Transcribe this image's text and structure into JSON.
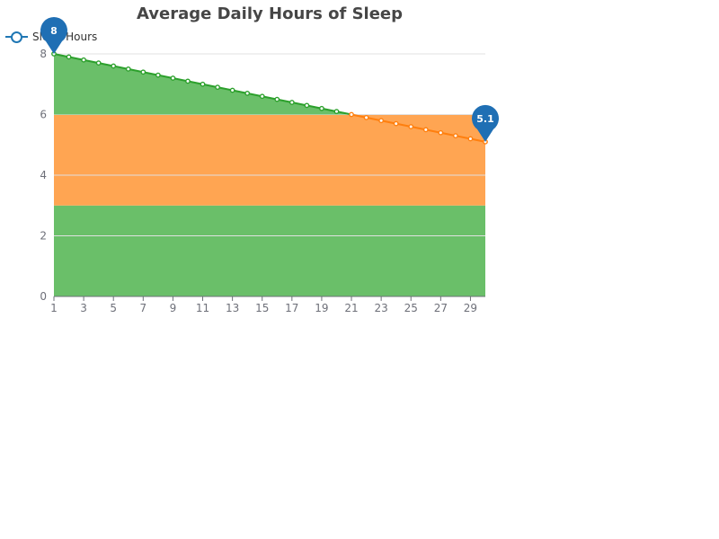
{
  "chart_data": {
    "type": "line",
    "title": "Average Daily Hours of Sleep",
    "xlabel": "",
    "ylabel": "",
    "x": [
      1,
      2,
      3,
      4,
      5,
      6,
      7,
      8,
      9,
      10,
      11,
      12,
      13,
      14,
      15,
      16,
      17,
      18,
      19,
      20,
      21,
      22,
      23,
      24,
      25,
      26,
      27,
      28,
      29,
      30
    ],
    "x_tick_labels": [
      "1",
      "3",
      "5",
      "7",
      "9",
      "11",
      "13",
      "15",
      "17",
      "19",
      "21",
      "23",
      "25",
      "27",
      "29"
    ],
    "y_tick_labels": [
      "0",
      "2",
      "4",
      "6",
      "8"
    ],
    "ylim": [
      0,
      8
    ],
    "grid": true,
    "legend_position": "top-left",
    "series": [
      {
        "name": "Sleep Hours",
        "values": [
          8.0,
          7.9,
          7.8,
          7.7,
          7.6,
          7.5,
          7.4,
          7.3,
          7.2,
          7.1,
          7.0,
          6.9,
          6.8,
          6.7,
          6.6,
          6.5,
          6.4,
          6.3,
          6.2,
          6.1,
          6.0,
          5.9,
          5.8,
          5.7,
          5.6,
          5.5,
          5.4,
          5.3,
          5.2,
          5.1
        ],
        "color": "#1f77b4"
      }
    ],
    "bands": [
      {
        "from": 0,
        "to": 3,
        "color": "#6abf69"
      },
      {
        "from": 3,
        "to": 6,
        "color": "#ffa552"
      }
    ],
    "visual_map": [
      {
        "max": 3,
        "color": "#2ca02c"
      },
      {
        "min": 3,
        "max": 6,
        "color": "#ff7f0e"
      },
      {
        "min": 6,
        "color": "#2ca02c"
      }
    ],
    "area_colors": {
      "above_band": "#6abf69"
    },
    "markers": [
      {
        "type": "max",
        "value": "8",
        "x": 1,
        "y": 8.0
      },
      {
        "type": "min",
        "value": "5.1",
        "x": 30,
        "y": 5.1
      }
    ],
    "pin_color": "#1f6fb4"
  }
}
